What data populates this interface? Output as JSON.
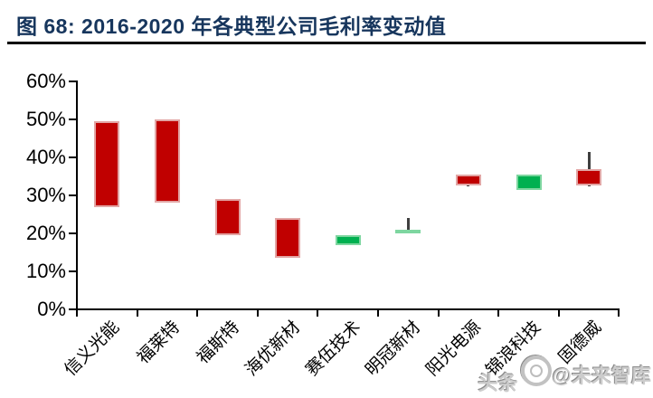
{
  "figure": {
    "title": "图 68:  2016-2020 年各典型公司毛利率变动值"
  },
  "watermark": {
    "part1": "头条",
    "part2": "@未来智库",
    "logo_icon": "toutiao-logo"
  },
  "colors": {
    "title": "#17365d",
    "axis": "#000000",
    "bar_down_fill": "#c00000",
    "bar_down_border": "#e2a6a5",
    "bar_up_fill": "#00b050",
    "bar_up_border": "#7ed6a0",
    "wick": "#3f3f3f"
  },
  "chart_data": {
    "type": "candlestick",
    "title": "图 68: 2016-2020 年各典型公司毛利率变动值",
    "unit": "%",
    "xlabel": "",
    "ylabel": "",
    "ylim": [
      0,
      60
    ],
    "ytick_step": 10,
    "ytick_labels": [
      "0%",
      "10%",
      "20%",
      "30%",
      "40%",
      "50%",
      "60%"
    ],
    "grid": false,
    "legend": "none",
    "categories": [
      "信义光能",
      "福莱特",
      "福斯特",
      "海优新材",
      "赛伍技术",
      "明冠新材",
      "阳光电源",
      "锦浪科技",
      "固德威"
    ],
    "bars": [
      {
        "category": "信义光能",
        "low": 27.0,
        "high": 49.5,
        "wick_high": 49.5,
        "wick_low": 27.0,
        "direction": "down"
      },
      {
        "category": "福莱特",
        "low": 28.0,
        "high": 50.0,
        "wick_high": 50.0,
        "wick_low": 28.0,
        "direction": "down"
      },
      {
        "category": "福斯特",
        "low": 19.5,
        "high": 29.0,
        "wick_high": 29.0,
        "wick_low": 19.5,
        "direction": "down"
      },
      {
        "category": "海优新材",
        "low": 13.5,
        "high": 24.0,
        "wick_high": 24.0,
        "wick_low": 13.5,
        "direction": "down"
      },
      {
        "category": "赛伍技术",
        "low": 17.0,
        "high": 19.5,
        "wick_high": 19.5,
        "wick_low": 17.0,
        "direction": "up"
      },
      {
        "category": "明冠新材",
        "low": 20.0,
        "high": 21.0,
        "wick_high": 24.0,
        "wick_low": 20.0,
        "direction": "up"
      },
      {
        "category": "阳光电源",
        "low": 32.5,
        "high": 35.5,
        "wick_high": 35.5,
        "wick_low": 32.5,
        "direction": "down"
      },
      {
        "category": "锦浪科技",
        "low": 31.5,
        "high": 35.5,
        "wick_high": 35.5,
        "wick_low": 31.5,
        "direction": "up"
      },
      {
        "category": "固德威",
        "low": 32.5,
        "high": 37.0,
        "wick_high": 41.5,
        "wick_low": 32.5,
        "direction": "down"
      }
    ]
  }
}
